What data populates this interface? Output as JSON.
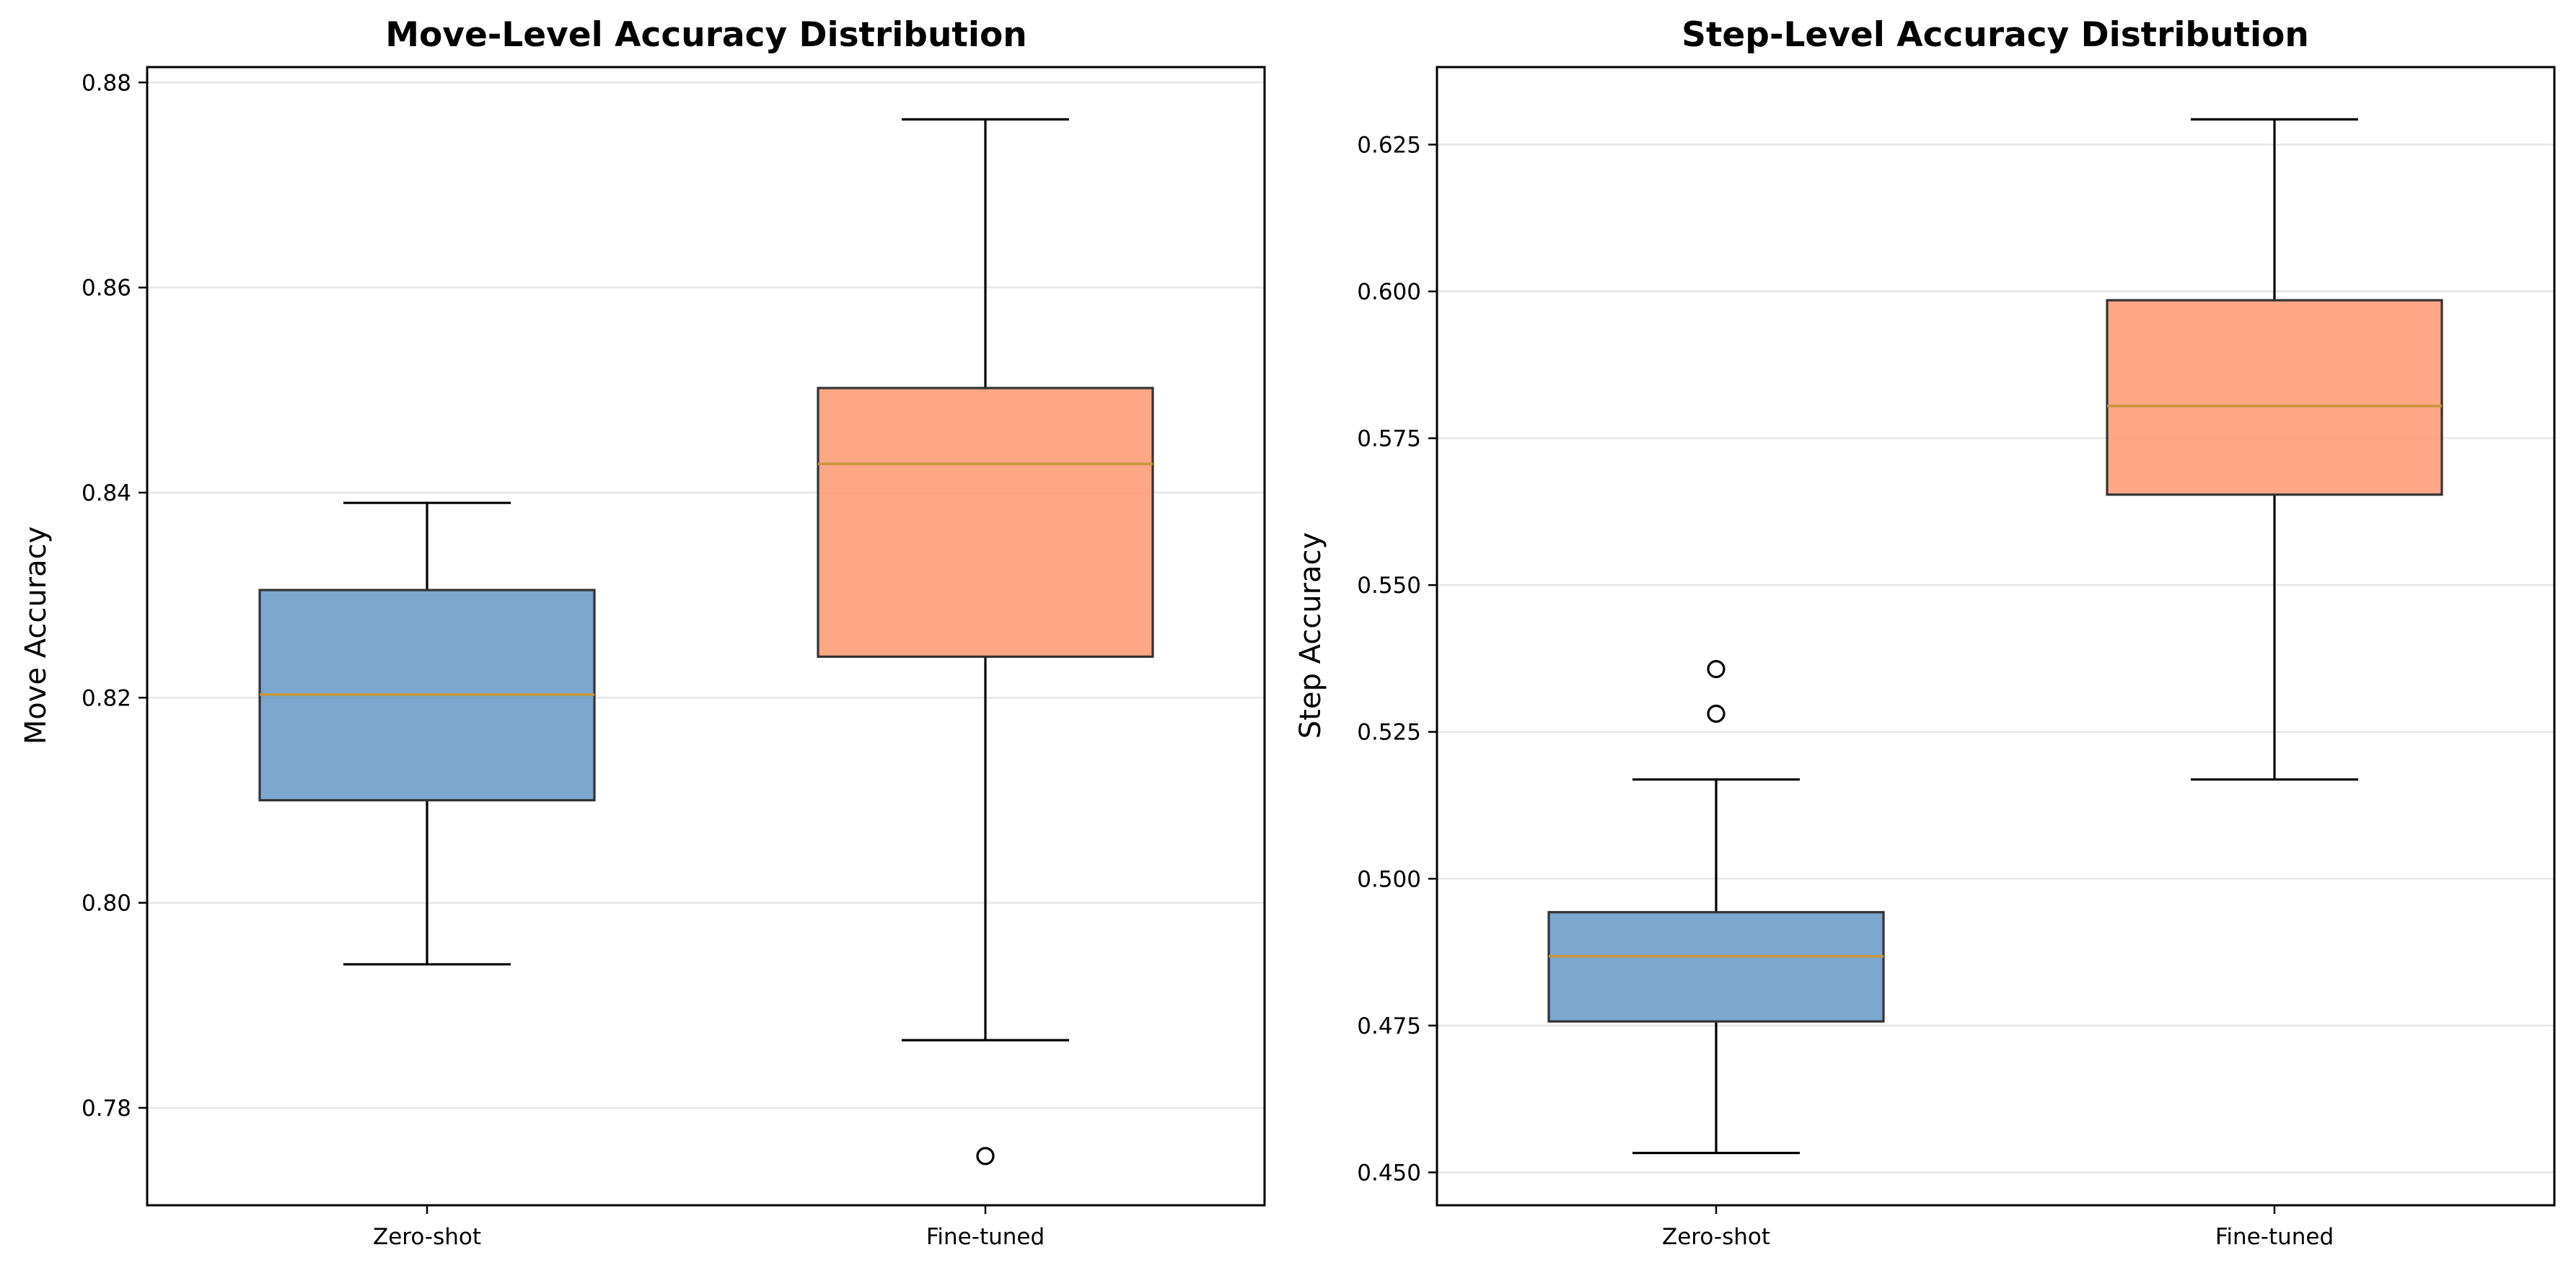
{
  "chart_data": [
    {
      "type": "box",
      "title": "Move-Level Accuracy Distribution",
      "ylabel": "Move Accuracy",
      "ylim": [
        0.7705,
        0.8815
      ],
      "yticks": [
        "0.78",
        "0.80",
        "0.82",
        "0.84",
        "0.86",
        "0.88"
      ],
      "grid": "y",
      "categories": [
        "Zero-shot",
        "Fine-tuned"
      ],
      "series": [
        {
          "category": "Zero-shot",
          "whisker_low": 0.794,
          "q1": 0.81,
          "median": 0.8203,
          "q3": 0.8305,
          "whisker_high": 0.839,
          "outliers": [],
          "color": "#6a9bc7"
        },
        {
          "category": "Fine-tuned",
          "whisker_low": 0.7866,
          "q1": 0.824,
          "median": 0.8428,
          "q3": 0.8502,
          "whisker_high": 0.8764,
          "outliers": [
            0.7753
          ],
          "color": "#ff9a73"
        }
      ]
    },
    {
      "type": "box",
      "title": "Step-Level Accuracy Distribution",
      "ylabel": "Step Accuracy",
      "ylim": [
        0.4444,
        0.6382
      ],
      "yticks": [
        "0.450",
        "0.475",
        "0.500",
        "0.525",
        "0.550",
        "0.575",
        "0.600",
        "0.625"
      ],
      "grid": "y",
      "categories": [
        "Zero-shot",
        "Fine-tuned"
      ],
      "series": [
        {
          "category": "Zero-shot",
          "whisker_low": 0.4533,
          "q1": 0.4757,
          "median": 0.4868,
          "q3": 0.4943,
          "whisker_high": 0.5169,
          "outliers": [
            0.5281,
            0.5357
          ],
          "color": "#6a9bc7"
        },
        {
          "category": "Fine-tuned",
          "whisker_low": 0.5169,
          "q1": 0.5654,
          "median": 0.5805,
          "q3": 0.5985,
          "whisker_high": 0.6293,
          "outliers": [],
          "color": "#ff9a73"
        }
      ]
    }
  ],
  "style": {
    "median_color": "#c8963c",
    "box_edge_color": "#333333",
    "grid_color": "#e6e6e6"
  }
}
